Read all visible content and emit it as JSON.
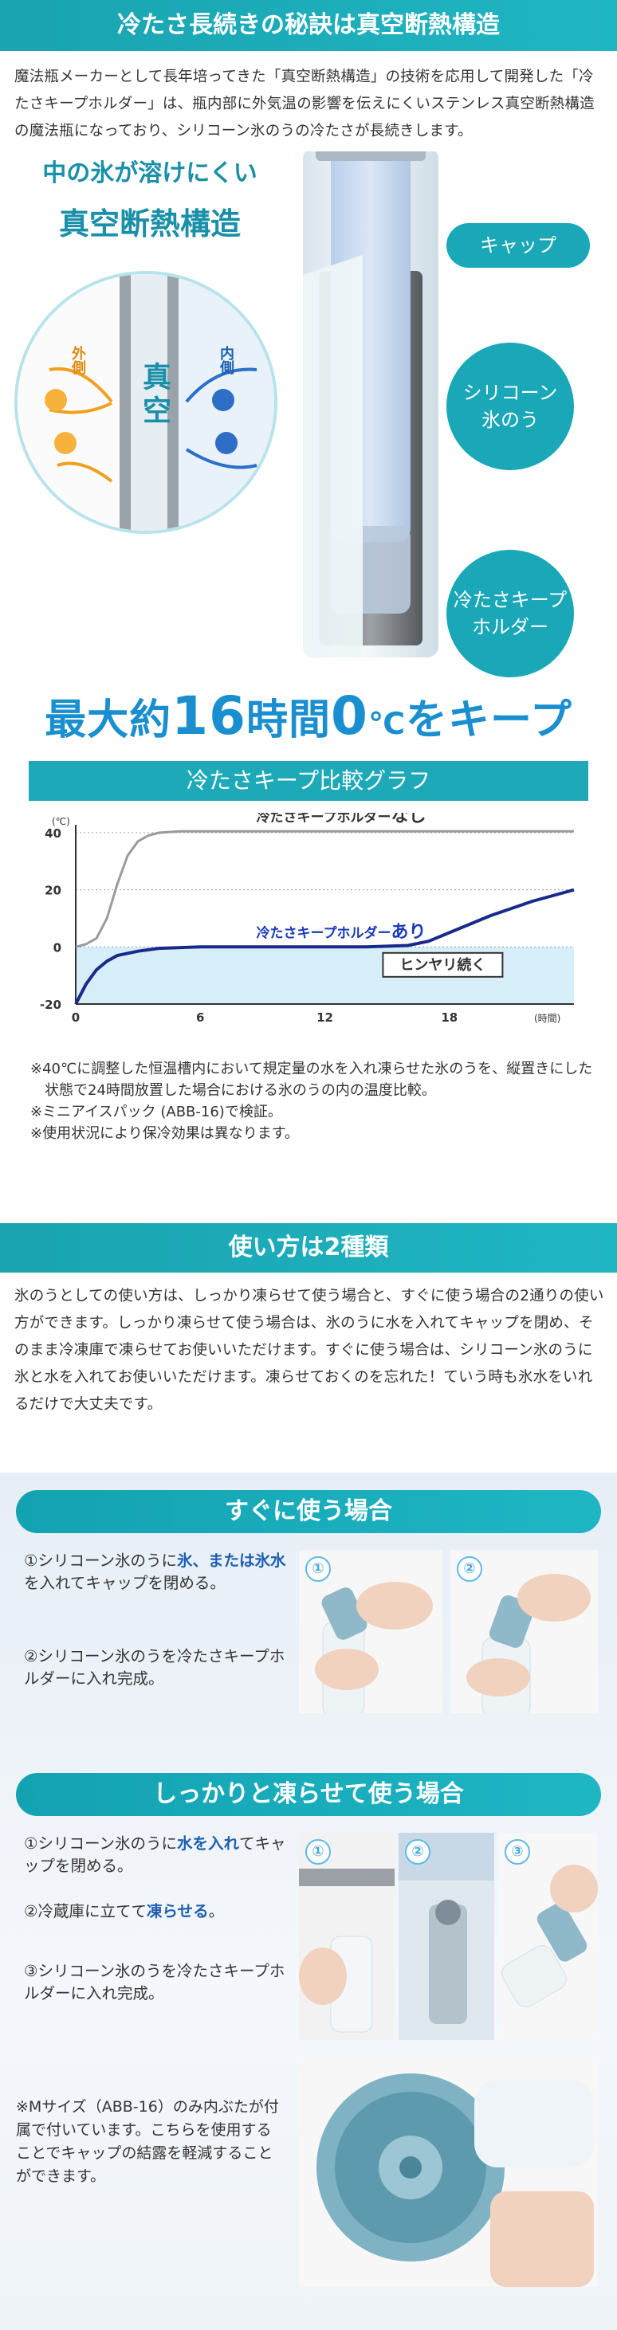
{
  "section_secret": {
    "title": "冷たさ長続きの秘訣は真空断熱構造",
    "body": "魔法瓶メーカーとして長年培ってきた「真空断熱構造」の技術を応用して開発した「冷たさキープホルダー」は、瓶内部に外気温の影響を伝えにくいステンレス真空断熱構造の魔法瓶になっており、シリコーン氷のうの冷たさが長続きします。"
  },
  "diagram": {
    "heading1": "中の氷が溶けにくい",
    "heading2": "真空断熱構造",
    "outer_label": "外側",
    "vacuum_label": "真空",
    "inner_label": "内側",
    "callout_cap": "キャップ",
    "callout_pack_1": "シリコーン",
    "callout_pack_2": "氷のう",
    "callout_holder_1": "冷たさキープ",
    "callout_holder_2": "ホルダー",
    "colors": {
      "accent": "#1aa7b8",
      "title_blue": "#1a8fd0"
    }
  },
  "headline": {
    "part1": "最大約",
    "number": "16",
    "part2": "時間",
    "zero": "0",
    "unit": "℃",
    "part3": "をキープ"
  },
  "graph": {
    "title": "冷たさキープ比較グラフ",
    "y_unit": "(℃)",
    "x_unit": "(時間)",
    "label_without": "冷たさキープホルダーなし",
    "label_without_a": "冷たさキープホルダー",
    "label_without_b": "なし",
    "label_with_a": "冷たさキープホルダー",
    "label_with_b": "あり",
    "badge": "ヒンヤリ続く"
  },
  "chart_data": {
    "type": "line",
    "title": "冷たさキープ比較グラフ",
    "xlabel": "(時間)",
    "ylabel": "(℃)",
    "xlim": [
      0,
      24
    ],
    "ylim": [
      -20,
      40
    ],
    "x_ticks": [
      0,
      6,
      12,
      18
    ],
    "y_ticks": [
      40,
      20,
      0,
      -20
    ],
    "series": [
      {
        "name": "冷たさキープホルダーなし",
        "color": "#9a9a9a",
        "x": [
          0,
          0.5,
          1,
          1.5,
          2,
          2.5,
          3,
          3.5,
          4,
          5,
          8,
          12,
          18,
          24
        ],
        "y": [
          0,
          1,
          3,
          10,
          22,
          32,
          37,
          39,
          40,
          40.5,
          40.5,
          40.5,
          40.5,
          40.5
        ]
      },
      {
        "name": "冷たさキープホルダーあり",
        "color": "#1a2a8a",
        "x": [
          0,
          0.5,
          1,
          1.5,
          2,
          3,
          4,
          6,
          10,
          14,
          16,
          17,
          18,
          20,
          22,
          24
        ],
        "y": [
          -20,
          -13,
          -8,
          -5,
          -3,
          -1.5,
          -0.5,
          0,
          0,
          0,
          0.5,
          2,
          5,
          11,
          16,
          20
        ]
      }
    ],
    "annotations": [
      "ヒンヤリ続く"
    ]
  },
  "notes": [
    "※40℃に調整した恒温槽内において規定量の水を入れ凍らせた氷のうを、縦置きにした状態で24時間放置した場合における氷のうの内の温度比較。",
    "※ミニアイスパック (ABB-16)で検証。",
    "※使用状況により保冷効果は異なります。"
  ],
  "section_usage": {
    "title": "使い方は2種類",
    "body": "氷のうとしての使い方は、しっかり凍らせて使う場合と、すぐに使う場合の2通りの使い方ができます。しっかり凍らせて使う場合は、氷のうに水を入れてキャップを閉め、そのまま冷凍庫で凍らせてお使いいただけます。すぐに使う場合は、シリコーン氷のうに氷と水を入れてお使いいただけます。凍らせておくのを忘れた！ていう時も氷水をいれるだけで大丈夫です。"
  },
  "quick": {
    "title": "すぐに使う場合",
    "step1_pre": "①シリコーン氷のうに",
    "step1_hl": "氷、または氷水",
    "step1_post": "を入れてキャップを閉める。",
    "step2": "②シリコーン氷のうを冷たさキープホルダーに入れ完成。",
    "photo_num_1": "①",
    "photo_num_2": "②"
  },
  "frozen": {
    "title": "しっかりと凍らせて使う場合",
    "step1_pre": "①シリコーン氷のうに",
    "step1_hl": "水を入れ",
    "step1_post": "てキャップを閉める。",
    "step2_pre": "②冷蔵庫に立てて",
    "step2_hl": "凍らせる",
    "step2_post": "。",
    "step3": "③シリコーン氷のうを冷たさキープホルダーに入れ完成。",
    "photo_num_1": "①",
    "photo_num_2": "②",
    "photo_num_3": "③"
  },
  "m_note": "※Mサイズ（ABB-16）のみ内ぶたが付属で付いています。こちらを使用することでキャップの結露を軽減することができます。"
}
